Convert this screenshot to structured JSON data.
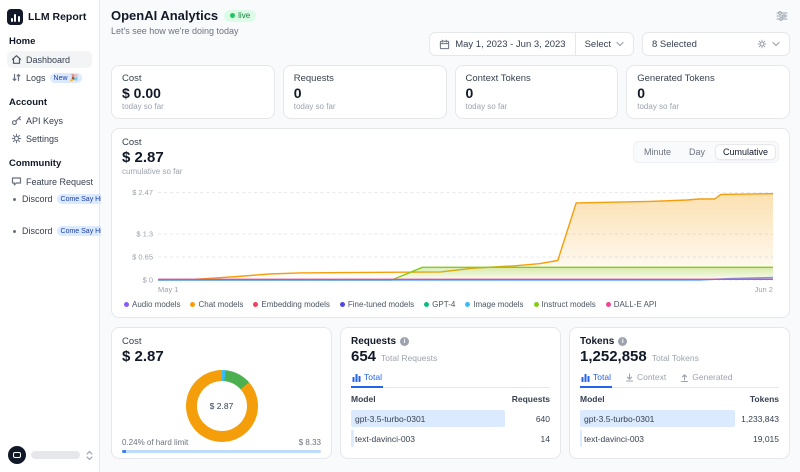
{
  "sidebar": {
    "logo_text": "LLM Report",
    "sections": [
      {
        "title": "Home",
        "items": [
          {
            "label": "Dashboard"
          },
          {
            "label": "Logs",
            "badge": "New 🎉"
          }
        ]
      },
      {
        "title": "Account",
        "items": [
          {
            "label": "API Keys"
          },
          {
            "label": "Settings"
          }
        ]
      },
      {
        "title": "Community",
        "items": [
          {
            "label": "Feature Request"
          },
          {
            "label": "Discord",
            "badge": "Come Say Hi! 👋"
          },
          {
            "label": "Discord",
            "badge": "Come Say Hi! 👋"
          }
        ]
      }
    ]
  },
  "header": {
    "title": "OpenAI Analytics",
    "live_badge": "live",
    "subtitle": "Let's see how we're doing today",
    "date_range": "May 1, 2023 - Jun 3, 2023",
    "select_label": "Select",
    "models_selected": "8 Selected"
  },
  "stat_cards": [
    {
      "label": "Cost",
      "value": "$ 0.00",
      "caption": "today so far"
    },
    {
      "label": "Requests",
      "value": "0",
      "caption": "today so far"
    },
    {
      "label": "Context Tokens",
      "value": "0",
      "caption": "today so far"
    },
    {
      "label": "Generated Tokens",
      "value": "0",
      "caption": "today so far"
    }
  ],
  "chart_card": {
    "label": "Cost",
    "value": "$ 2.87",
    "caption": "cumulative so far",
    "tabs": [
      "Minute",
      "Day",
      "Cumulative"
    ],
    "active_tab": "Cumulative"
  },
  "chart_data": [
    {
      "type": "area",
      "title": "Cost cumulative so far",
      "x_labels": [
        "May 1",
        "Jun 2"
      ],
      "ymax": 2.6,
      "y_ticks": [
        {
          "label": "$ 2.47",
          "value": 2.47
        },
        {
          "label": "$ 1.3",
          "value": 1.3
        },
        {
          "label": "$ 0.65",
          "value": 0.65
        },
        {
          "label": "$ 0",
          "value": 0
        }
      ],
      "series": [
        {
          "name": "Chat models",
          "color": "#f59e0b",
          "fill": true,
          "points": [
            [
              0,
              0
            ],
            [
              6,
              0.02
            ],
            [
              13,
              0.1
            ],
            [
              18,
              0.17
            ],
            [
              23,
              0.2
            ],
            [
              30,
              0.21
            ],
            [
              46,
              0.23
            ],
            [
              51,
              0.33
            ],
            [
              58,
              0.4
            ],
            [
              62,
              0.46
            ],
            [
              65,
              0.55
            ],
            [
              68,
              2.18
            ],
            [
              80,
              2.22
            ],
            [
              86,
              2.26
            ],
            [
              88,
              2.29
            ],
            [
              90.5,
              2.29
            ],
            [
              91.5,
              2.42
            ],
            [
              100,
              2.44
            ]
          ]
        },
        {
          "name": "Instruct models",
          "color": "#84cc16",
          "fill": true,
          "points": [
            [
              0,
              0
            ],
            [
              38,
              0
            ],
            [
              43,
              0.36
            ],
            [
              100,
              0.36
            ]
          ]
        },
        {
          "name": "Image models",
          "color": "#60a5fa",
          "fill": true,
          "points": [
            [
              0,
              0
            ],
            [
              88,
              0
            ],
            [
              93,
              0.04
            ],
            [
              100,
              0.07
            ]
          ]
        },
        {
          "name": "DALL-E API",
          "color": "#ec4899",
          "fill": false,
          "points": [
            [
              0,
              0.02
            ],
            [
              100,
              0.02
            ]
          ]
        }
      ],
      "legend": [
        {
          "label": "Audio models",
          "color": "#8b5cf6"
        },
        {
          "label": "Chat models",
          "color": "#f59e0b"
        },
        {
          "label": "Embedding models",
          "color": "#f43f5e"
        },
        {
          "label": "Fine-tuned models",
          "color": "#4f46e5"
        },
        {
          "label": "GPT-4",
          "color": "#10b981"
        },
        {
          "label": "Image models",
          "color": "#38bdf8"
        },
        {
          "label": "Instruct models",
          "color": "#84cc16"
        },
        {
          "label": "DALL-E API",
          "color": "#ec4899"
        }
      ]
    },
    {
      "type": "pie",
      "center_label": "$ 2.87",
      "slices": [
        {
          "label": "Image models",
          "value": 1.5,
          "color": "#38bdf8"
        },
        {
          "label": "Instruct models",
          "value": 12,
          "color": "#4caf50"
        },
        {
          "label": "Chat models",
          "value": 86.5,
          "color": "#f59e0b"
        }
      ]
    }
  ],
  "cost_card": {
    "label": "Cost",
    "value": "$ 2.87",
    "hard_limit_label": "0.24% of hard limit",
    "hard_limit_amount": "$ 8.33"
  },
  "requests_card": {
    "title": "Requests",
    "total": "654",
    "caption": "Total Requests",
    "tab_total": "Total",
    "col_model": "Model",
    "col_value": "Requests",
    "rows": [
      {
        "model": "gpt-3.5-turbo-0301",
        "value": "640",
        "bar_pct": 98
      },
      {
        "model": "text-davinci-003",
        "value": "14",
        "bar_pct": 2.2
      }
    ]
  },
  "tokens_card": {
    "title": "Tokens",
    "total": "1,252,858",
    "caption": "Total Tokens",
    "tab_total": "Total",
    "tab_context": "Context",
    "tab_generated": "Generated",
    "col_model": "Model",
    "col_value": "Tokens",
    "rows": [
      {
        "model": "gpt-3.5-turbo-0301",
        "value": "1,233,843",
        "bar_pct": 98.5
      },
      {
        "model": "text-davinci-003",
        "value": "19,015",
        "bar_pct": 1.5
      }
    ]
  }
}
